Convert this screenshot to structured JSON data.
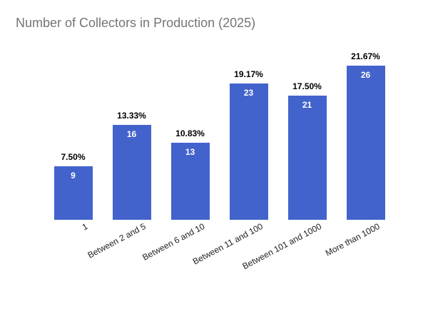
{
  "chart_data": {
    "type": "bar",
    "title": "Number of Collectors in Production (2025)",
    "categories": [
      "1",
      "Between 2 and 5",
      "Between 6 and 10",
      "Between 11 and 100",
      "Between 101 and 1000",
      "More than 1000"
    ],
    "values": [
      9,
      16,
      13,
      23,
      21,
      26
    ],
    "percent_labels": [
      "7.50%",
      "13.33%",
      "10.83%",
      "19.17%",
      "17.50%",
      "21.67%"
    ],
    "xlabel": "",
    "ylabel": "",
    "ylim": [
      0,
      28
    ],
    "grid": false,
    "legend": "none"
  },
  "colors": {
    "bar": "#4363cc",
    "title": "#757575",
    "percent_label": "#000000",
    "value_label": "#ffffff",
    "axis_label": "#222222",
    "background": "#ffffff"
  }
}
